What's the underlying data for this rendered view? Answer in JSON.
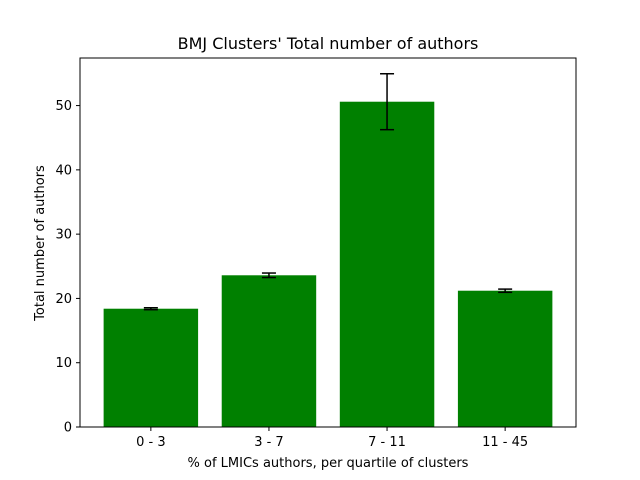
{
  "chart_data": {
    "type": "bar",
    "title": "BMJ Clusters' Total number of authors",
    "xlabel": "% of LMICs authors, per quartile of clusters",
    "ylabel": "Total number of authors",
    "categories": [
      "0 - 3",
      "3 - 7",
      "7 - 11",
      "11 - 45"
    ],
    "values": [
      18.4,
      23.6,
      50.6,
      21.2
    ],
    "error": [
      0.15,
      0.35,
      4.35,
      0.25
    ],
    "ylim": [
      0,
      57.4
    ],
    "yticks": [
      0,
      10,
      20,
      30,
      40,
      50
    ],
    "bar_color": "#008000",
    "errorbar_color": "#000000",
    "grid": false,
    "legend": "none"
  }
}
